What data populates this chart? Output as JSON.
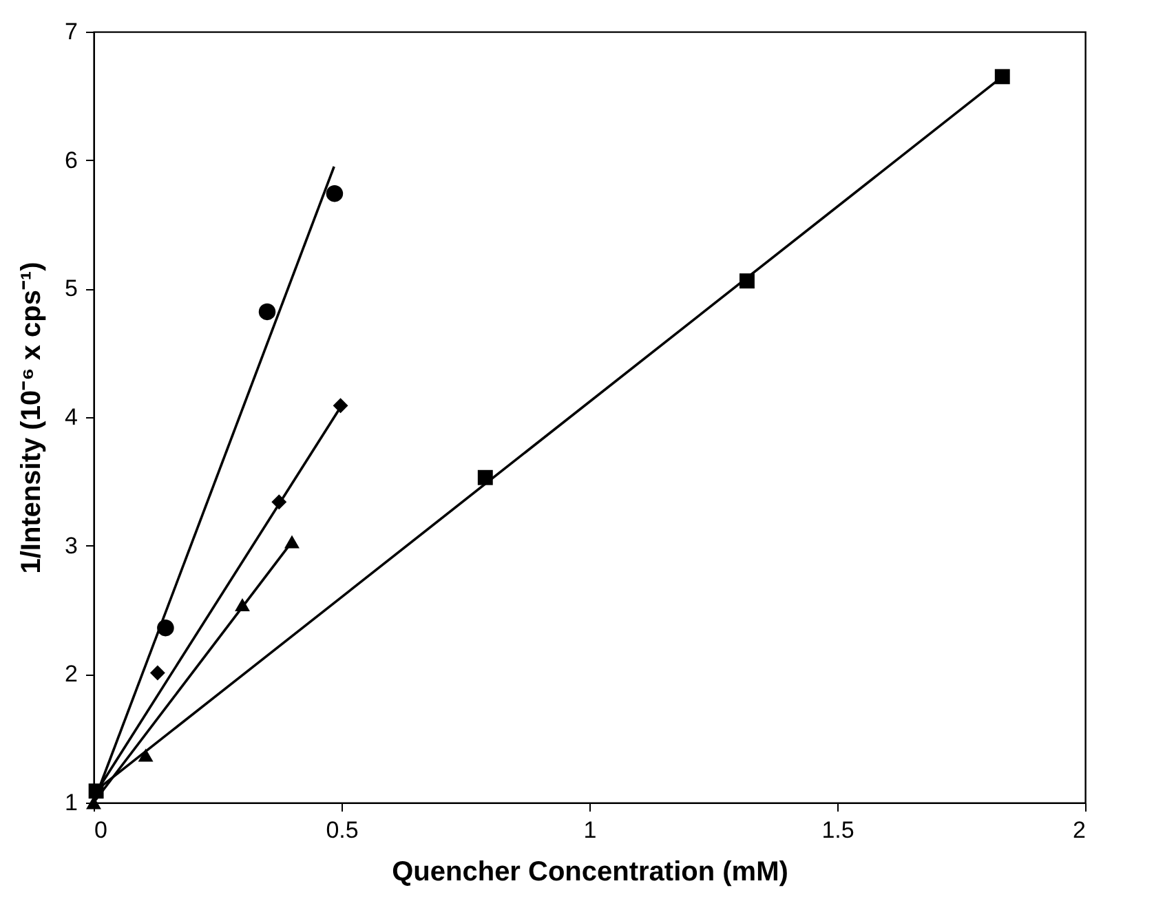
{
  "chart_data": {
    "type": "scatter",
    "xlabel": "Quencher Concentration (mM)",
    "ylabel": "1/Intensity   (10⁻⁶ x cps⁻¹)",
    "xlim": [
      0,
      2
    ],
    "xticks": [
      0,
      0.5,
      1,
      1.5,
      2
    ],
    "ylim": [
      1,
      7
    ],
    "yticks": [
      1,
      2,
      3,
      4,
      5,
      6,
      7
    ],
    "grid": false,
    "series": [
      {
        "type": "scatter",
        "marker": "circle",
        "color": "#000000",
        "x": [
          0.145,
          0.35,
          0.486
        ],
        "values": [
          2.36,
          4.82,
          5.74
        ]
      },
      {
        "type": "scatter",
        "marker": "diamond",
        "color": "#000000",
        "x": [
          0.129,
          0.374,
          0.498
        ],
        "values": [
          2.01,
          3.34,
          4.09
        ]
      },
      {
        "type": "scatter",
        "marker": "triangle",
        "color": "#000000",
        "x": [
          0,
          0.105,
          0.3,
          0.4
        ],
        "values": [
          1.0,
          1.37,
          2.54,
          3.03
        ]
      },
      {
        "type": "scatter",
        "marker": "square",
        "color": "#000000",
        "x": [
          0.005,
          0.79,
          1.318,
          1.833
        ],
        "values": [
          1.09,
          3.53,
          5.06,
          6.65
        ]
      },
      {
        "type": "line",
        "color": "#000000",
        "x": [
          0,
          0.485
        ],
        "values": [
          1.0,
          5.95
        ]
      },
      {
        "type": "line",
        "color": "#000000",
        "x": [
          0,
          0.5
        ],
        "values": [
          1.05,
          4.09
        ]
      },
      {
        "type": "line",
        "color": "#000000",
        "x": [
          0,
          0.4
        ],
        "values": [
          1.0,
          3.03
        ]
      },
      {
        "type": "line",
        "color": "#000000",
        "x": [
          0,
          1.833
        ],
        "values": [
          1.08,
          6.65
        ]
      }
    ]
  }
}
